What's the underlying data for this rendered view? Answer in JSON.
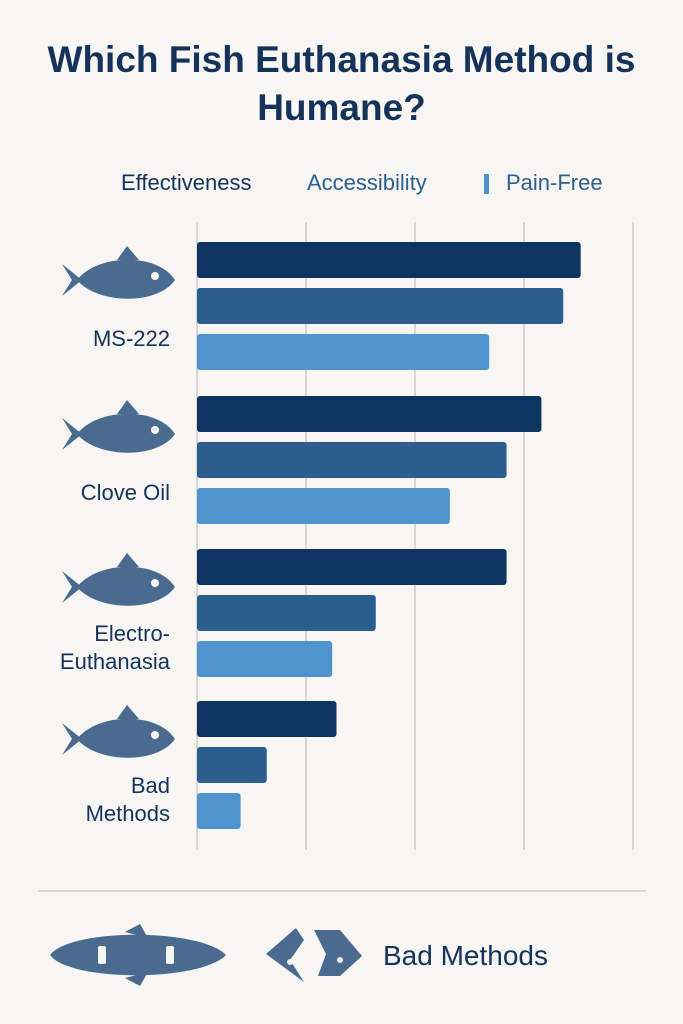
{
  "title": "Which Fish Euthanasia Method is Humane?",
  "colors": {
    "effectiveness": "#0e3560",
    "accessibility": "#2b5e8c",
    "pain_free": "#4f93cc",
    "fish_icon": "#4a6b8f",
    "grid": "#d6d6d6"
  },
  "chart_data": {
    "type": "bar",
    "orientation": "horizontal",
    "categories": [
      "MS-222",
      "Clove Oil",
      "Electro-Euthanasia",
      "Bad Methods"
    ],
    "category_label_lines": [
      [
        "MS-222"
      ],
      [
        "Clove Oil"
      ],
      [
        "Electro-",
        "Euthanasia"
      ],
      [
        "Bad",
        "Methods"
      ]
    ],
    "series": [
      {
        "name": "Effectiveness",
        "values": [
          88,
          79,
          71,
          32
        ]
      },
      {
        "name": "Accessibility",
        "values": [
          84,
          71,
          41,
          16
        ]
      },
      {
        "name": "Pain-Free",
        "values": [
          67,
          58,
          31,
          10
        ]
      }
    ],
    "xlim": [
      0,
      100
    ],
    "grid": true,
    "legend_position": "top",
    "icons": [
      "fish-icon",
      "fish-icon",
      "fish-icon",
      "fish-icon"
    ]
  },
  "footer": {
    "label": "Bad Methods",
    "icons": [
      "fish-silhouette-icon",
      "fish-pieces-icon"
    ]
  }
}
